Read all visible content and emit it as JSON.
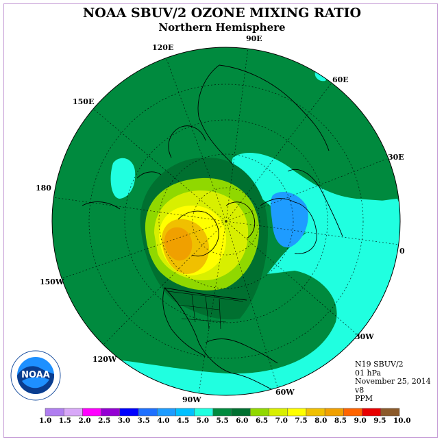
{
  "header": {
    "title": "NOAA SBUV/2 OZONE MIXING RATIO",
    "subtitle": "Northern Hemisphere"
  },
  "longitude_labels": [
    "90E",
    "60E",
    "30E",
    "0",
    "30W",
    "60W",
    "90W",
    "120W",
    "150W",
    "180",
    "150E",
    "120E"
  ],
  "info": {
    "instrument": "N19 SBUV/2",
    "level": "01 hPa",
    "date": "November 25, 2014",
    "version": "v8",
    "units": "PPM"
  },
  "color_scale": {
    "labels": [
      "1.0",
      "1.5",
      "2.0",
      "2.5",
      "3.0",
      "3.5",
      "4.0",
      "4.5",
      "5.0",
      "5.5",
      "6.0",
      "6.5",
      "7.0",
      "7.5",
      "8.0",
      "8.5",
      "9.0",
      "9.5",
      "10.0"
    ],
    "colors": [
      "#b07ef0",
      "#d8a8f8",
      "#ff00ff",
      "#9400d3",
      "#0000ff",
      "#1e70ff",
      "#1e9cff",
      "#00c0ff",
      "#20ffe0",
      "#008a3e",
      "#007030",
      "#90d800",
      "#d8ef00",
      "#ffff00",
      "#f0c000",
      "#f0a000",
      "#ff6400",
      "#e80000",
      "#8b5a2b"
    ]
  },
  "logo": {
    "text": "NOAA",
    "ring_text": "NATIONAL OCEANIC AND ATMOSPHERIC ADMINISTRATION · U.S. DEPARTMENT OF COMMERCE"
  }
}
